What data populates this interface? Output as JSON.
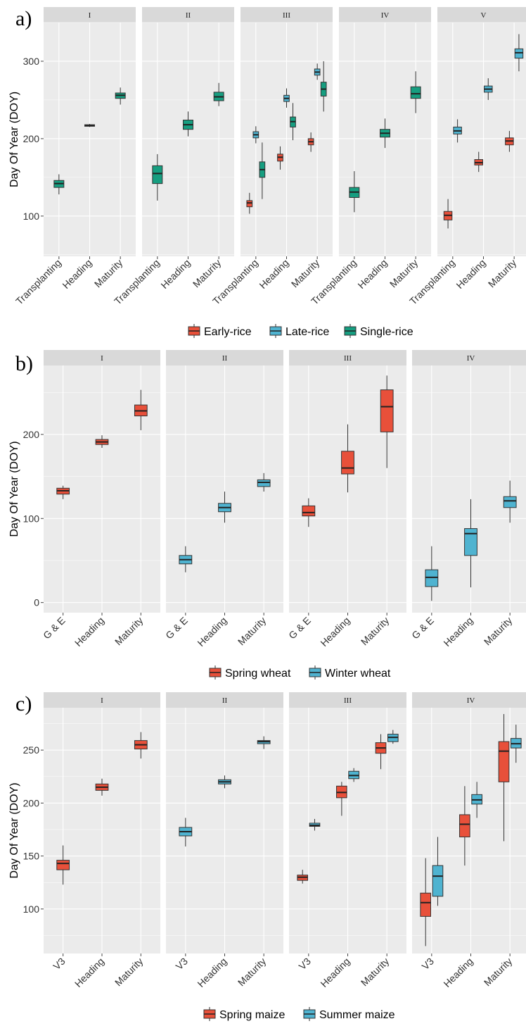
{
  "colors": {
    "red": "#e8503a",
    "blue": "#4fb3d0",
    "green": "#169e80",
    "panel_bg": "#ebebeb",
    "strip_bg": "#d9d9d9",
    "grid": "#ffffff"
  },
  "chart_data": [
    {
      "panel_label": "a)",
      "type": "boxplot",
      "ylabel": "Day Of Year (DOY)",
      "ylim": [
        48,
        350
      ],
      "yticks": [
        100,
        200,
        300
      ],
      "categories": [
        "Transplanting",
        "Heading",
        "Maturity"
      ],
      "legend": [
        {
          "name": "Early-rice",
          "color": "#e8503a"
        },
        {
          "name": "Late-rice",
          "color": "#4fb3d0"
        },
        {
          "name": "Single-rice",
          "color": "#169e80"
        }
      ],
      "facets": [
        {
          "strip": "I",
          "boxes": [
            {
              "category": "Transplanting",
              "series": "Single-rice",
              "min": 128,
              "q1": 137,
              "median": 142,
              "q3": 146,
              "max": 154
            },
            {
              "category": "Heading",
              "series": "Single-rice",
              "min": 215,
              "q1": 216,
              "median": 217,
              "q3": 218,
              "max": 219
            },
            {
              "category": "Maturity",
              "series": "Single-rice",
              "min": 244,
              "q1": 252,
              "median": 256,
              "q3": 259,
              "max": 266
            }
          ]
        },
        {
          "strip": "II",
          "boxes": [
            {
              "category": "Transplanting",
              "series": "Single-rice",
              "min": 120,
              "q1": 142,
              "median": 155,
              "q3": 165,
              "max": 180
            },
            {
              "category": "Heading",
              "series": "Single-rice",
              "min": 203,
              "q1": 212,
              "median": 218,
              "q3": 224,
              "max": 235
            },
            {
              "category": "Maturity",
              "series": "Single-rice",
              "min": 242,
              "q1": 249,
              "median": 254,
              "q3": 260,
              "max": 272
            }
          ]
        },
        {
          "strip": "III",
          "boxes": [
            {
              "category": "Transplanting",
              "series": "Early-rice",
              "min": 103,
              "q1": 112,
              "median": 117,
              "q3": 120,
              "max": 130
            },
            {
              "category": "Transplanting",
              "series": "Late-rice",
              "min": 194,
              "q1": 201,
              "median": 205,
              "q3": 209,
              "max": 216
            },
            {
              "category": "Transplanting",
              "series": "Single-rice",
              "min": 122,
              "q1": 150,
              "median": 160,
              "q3": 170,
              "max": 195
            },
            {
              "category": "Heading",
              "series": "Early-rice",
              "min": 160,
              "q1": 171,
              "median": 176,
              "q3": 180,
              "max": 190
            },
            {
              "category": "Heading",
              "series": "Late-rice",
              "min": 240,
              "q1": 248,
              "median": 252,
              "q3": 256,
              "max": 265
            },
            {
              "category": "Heading",
              "series": "Single-rice",
              "min": 198,
              "q1": 215,
              "median": 222,
              "q3": 228,
              "max": 246
            },
            {
              "category": "Maturity",
              "series": "Early-rice",
              "min": 183,
              "q1": 192,
              "median": 196,
              "q3": 200,
              "max": 208
            },
            {
              "category": "Maturity",
              "series": "Late-rice",
              "min": 276,
              "q1": 282,
              "median": 286,
              "q3": 290,
              "max": 297
            },
            {
              "category": "Maturity",
              "series": "Single-rice",
              "min": 235,
              "q1": 255,
              "median": 264,
              "q3": 273,
              "max": 300
            }
          ]
        },
        {
          "strip": "IV",
          "boxes": [
            {
              "category": "Transplanting",
              "series": "Single-rice",
              "min": 105,
              "q1": 124,
              "median": 131,
              "q3": 137,
              "max": 158
            },
            {
              "category": "Heading",
              "series": "Single-rice",
              "min": 188,
              "q1": 202,
              "median": 207,
              "q3": 212,
              "max": 226
            },
            {
              "category": "Maturity",
              "series": "Single-rice",
              "min": 233,
              "q1": 252,
              "median": 258,
              "q3": 267,
              "max": 287
            }
          ]
        },
        {
          "strip": "V",
          "boxes": [
            {
              "category": "Transplanting",
              "series": "Early-rice",
              "min": 84,
              "q1": 95,
              "median": 101,
              "q3": 106,
              "max": 122
            },
            {
              "category": "Transplanting",
              "series": "Late-rice",
              "min": 195,
              "q1": 206,
              "median": 210,
              "q3": 215,
              "max": 225
            },
            {
              "category": "Heading",
              "series": "Early-rice",
              "min": 157,
              "q1": 166,
              "median": 169,
              "q3": 173,
              "max": 183
            },
            {
              "category": "Heading",
              "series": "Late-rice",
              "min": 250,
              "q1": 260,
              "median": 264,
              "q3": 268,
              "max": 278
            },
            {
              "category": "Maturity",
              "series": "Early-rice",
              "min": 183,
              "q1": 192,
              "median": 197,
              "q3": 201,
              "max": 210
            },
            {
              "category": "Maturity",
              "series": "Late-rice",
              "min": 287,
              "q1": 304,
              "median": 311,
              "q3": 316,
              "max": 335
            }
          ]
        }
      ]
    },
    {
      "panel_label": "b)",
      "type": "boxplot",
      "ylabel": "Day Of Year (DOY)",
      "ylim": [
        -12,
        282
      ],
      "yticks": [
        0,
        100,
        200
      ],
      "categories": [
        "G & E",
        "Heading",
        "Maturity"
      ],
      "legend": [
        {
          "name": "Spring wheat",
          "color": "#e8503a"
        },
        {
          "name": "Winter wheat",
          "color": "#4fb3d0"
        }
      ],
      "facets": [
        {
          "strip": "I",
          "boxes": [
            {
              "category": "G & E",
              "series": "Spring wheat",
              "min": 123,
              "q1": 129,
              "median": 133,
              "q3": 136,
              "max": 139
            },
            {
              "category": "Heading",
              "series": "Spring wheat",
              "min": 184,
              "q1": 188,
              "median": 191,
              "q3": 194,
              "max": 199
            },
            {
              "category": "Maturity",
              "series": "Spring wheat",
              "min": 205,
              "q1": 222,
              "median": 228,
              "q3": 235,
              "max": 253
            }
          ]
        },
        {
          "strip": "II",
          "boxes": [
            {
              "category": "G & E",
              "series": "Winter wheat",
              "min": 36,
              "q1": 46,
              "median": 51,
              "q3": 56,
              "max": 67
            },
            {
              "category": "Heading",
              "series": "Winter wheat",
              "min": 95,
              "q1": 108,
              "median": 113,
              "q3": 118,
              "max": 132
            },
            {
              "category": "Maturity",
              "series": "Winter wheat",
              "min": 132,
              "q1": 138,
              "median": 143,
              "q3": 146,
              "max": 154
            }
          ]
        },
        {
          "strip": "III",
          "boxes": [
            {
              "category": "G & E",
              "series": "Spring wheat",
              "min": 90,
              "q1": 103,
              "median": 107,
              "q3": 115,
              "max": 124
            },
            {
              "category": "Heading",
              "series": "Spring wheat",
              "min": 131,
              "q1": 153,
              "median": 160,
              "q3": 180,
              "max": 212
            },
            {
              "category": "Maturity",
              "series": "Spring wheat",
              "min": 160,
              "q1": 203,
              "median": 233,
              "q3": 253,
              "max": 270
            }
          ]
        },
        {
          "strip": "IV",
          "boxes": [
            {
              "category": "G & E",
              "series": "Winter wheat",
              "min": 2,
              "q1": 19,
              "median": 30,
              "q3": 39,
              "max": 67
            },
            {
              "category": "Heading",
              "series": "Winter wheat",
              "min": 18,
              "q1": 56,
              "median": 82,
              "q3": 88,
              "max": 123
            },
            {
              "category": "Maturity",
              "series": "Winter wheat",
              "min": 95,
              "q1": 113,
              "median": 121,
              "q3": 126,
              "max": 145
            }
          ]
        }
      ]
    },
    {
      "panel_label": "c)",
      "type": "boxplot",
      "ylabel": "Day Of Year (DOY)",
      "ylim": [
        58,
        290
      ],
      "yticks": [
        100,
        150,
        200,
        250
      ],
      "categories": [
        "V3",
        "Heading",
        "Maturity"
      ],
      "legend": [
        {
          "name": "Spring maize",
          "color": "#e8503a"
        },
        {
          "name": "Summer maize",
          "color": "#4fb3d0"
        }
      ],
      "facets": [
        {
          "strip": "I",
          "boxes": [
            {
              "category": "V3",
              "series": "Spring maize",
              "min": 123,
              "q1": 137,
              "median": 143,
              "q3": 146,
              "max": 160
            },
            {
              "category": "Heading",
              "series": "Spring maize",
              "min": 207,
              "q1": 212,
              "median": 215,
              "q3": 218,
              "max": 223
            },
            {
              "category": "Maturity",
              "series": "Spring maize",
              "min": 242,
              "q1": 251,
              "median": 255,
              "q3": 259,
              "max": 267
            }
          ]
        },
        {
          "strip": "II",
          "boxes": [
            {
              "category": "V3",
              "series": "Summer maize",
              "min": 159,
              "q1": 169,
              "median": 173,
              "q3": 177,
              "max": 186
            },
            {
              "category": "Heading",
              "series": "Summer maize",
              "min": 214,
              "q1": 218,
              "median": 220,
              "q3": 222,
              "max": 226
            },
            {
              "category": "Maturity",
              "series": "Summer maize",
              "min": 251,
              "q1": 256,
              "median": 258,
              "q3": 259,
              "max": 263
            }
          ]
        },
        {
          "strip": "III",
          "boxes": [
            {
              "category": "V3",
              "series": "Spring maize",
              "min": 124,
              "q1": 127,
              "median": 130,
              "q3": 132,
              "max": 137
            },
            {
              "category": "V3",
              "series": "Summer maize",
              "min": 174,
              "q1": 178,
              "median": 179,
              "q3": 181,
              "max": 185
            },
            {
              "category": "Heading",
              "series": "Spring maize",
              "min": 188,
              "q1": 205,
              "median": 210,
              "q3": 216,
              "max": 220
            },
            {
              "category": "Heading",
              "series": "Summer maize",
              "min": 220,
              "q1": 223,
              "median": 226,
              "q3": 230,
              "max": 233
            },
            {
              "category": "Maturity",
              "series": "Spring maize",
              "min": 232,
              "q1": 247,
              "median": 252,
              "q3": 257,
              "max": 265
            },
            {
              "category": "Maturity",
              "series": "Summer maize",
              "min": 256,
              "q1": 258,
              "median": 262,
              "q3": 265,
              "max": 269
            }
          ]
        },
        {
          "strip": "IV",
          "boxes": [
            {
              "category": "V3",
              "series": "Spring maize",
              "min": 65,
              "q1": 93,
              "median": 106,
              "q3": 115,
              "max": 148
            },
            {
              "category": "V3",
              "series": "Summer maize",
              "min": 103,
              "q1": 112,
              "median": 131,
              "q3": 141,
              "max": 168
            },
            {
              "category": "Heading",
              "series": "Spring maize",
              "min": 141,
              "q1": 168,
              "median": 180,
              "q3": 189,
              "max": 216
            },
            {
              "category": "Heading",
              "series": "Summer maize",
              "min": 186,
              "q1": 199,
              "median": 203,
              "q3": 208,
              "max": 220
            },
            {
              "category": "Maturity",
              "series": "Spring maize",
              "min": 164,
              "q1": 220,
              "median": 249,
              "q3": 258,
              "max": 284
            },
            {
              "category": "Maturity",
              "series": "Summer maize",
              "min": 238,
              "q1": 252,
              "median": 256,
              "q3": 261,
              "max": 274
            }
          ]
        }
      ]
    }
  ]
}
